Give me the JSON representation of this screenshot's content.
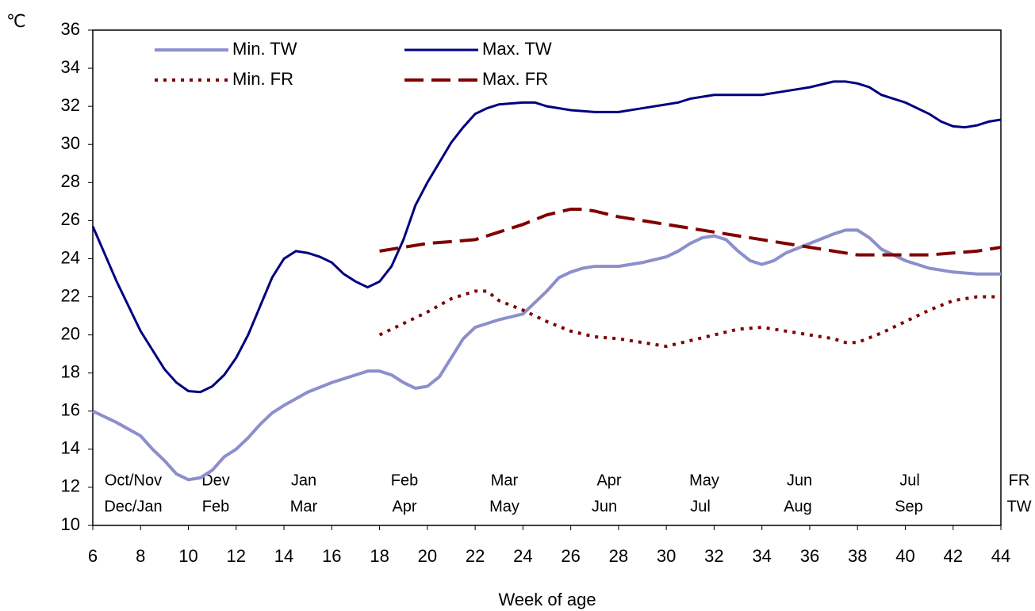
{
  "chart_data": {
    "type": "line",
    "y_label": "℃",
    "x_label": "Week of age",
    "xlim": [
      6,
      44
    ],
    "xticks": [
      6,
      8,
      10,
      12,
      14,
      16,
      18,
      20,
      22,
      24,
      26,
      28,
      30,
      32,
      34,
      36,
      38,
      40,
      42,
      44
    ],
    "ylim": [
      10,
      36
    ],
    "yticks": [
      10,
      12,
      14,
      16,
      18,
      20,
      22,
      24,
      26,
      28,
      30,
      32,
      34,
      36
    ],
    "annotations": [
      [
        "Oct/Nov",
        "Dev",
        "Jan",
        "Feb",
        "Mar",
        "Apr",
        "May",
        "Jun",
        "Jul",
        "FR"
      ],
      [
        "Dec/Jan",
        "Feb",
        "Mar",
        "Apr",
        "May",
        "Jun",
        "Jul",
        "Aug",
        "Sep",
        "TW"
      ]
    ],
    "series": [
      {
        "name": "Min. TW",
        "color": "#8c8fcc",
        "style": "solid",
        "x": [
          6,
          7,
          8,
          8.5,
          9,
          9.5,
          10,
          10.5,
          11,
          11.5,
          12,
          12.5,
          13,
          13.5,
          14,
          15,
          16,
          17,
          17.5,
          18,
          18.5,
          19,
          19.5,
          20,
          20.5,
          21,
          21.5,
          22,
          23,
          24,
          25,
          25.5,
          26,
          26.5,
          27,
          28,
          29,
          30,
          30.5,
          31,
          31.5,
          32,
          32.5,
          33,
          33.5,
          34,
          34.5,
          35,
          36,
          37,
          37.5,
          38,
          38.5,
          39,
          40,
          41,
          42,
          43,
          44
        ],
        "values": [
          16.0,
          15.4,
          14.7,
          14.0,
          13.4,
          12.7,
          12.4,
          12.5,
          12.9,
          13.6,
          14.0,
          14.6,
          15.3,
          15.9,
          16.3,
          17.0,
          17.5,
          17.9,
          18.1,
          18.1,
          17.9,
          17.5,
          17.2,
          17.3,
          17.8,
          18.8,
          19.8,
          20.4,
          20.8,
          21.1,
          22.3,
          23.0,
          23.3,
          23.5,
          23.6,
          23.6,
          23.8,
          24.1,
          24.4,
          24.8,
          25.1,
          25.2,
          25.0,
          24.4,
          23.9,
          23.7,
          23.9,
          24.3,
          24.8,
          25.3,
          25.5,
          25.5,
          25.1,
          24.5,
          23.9,
          23.5,
          23.3,
          23.2,
          23.2
        ]
      },
      {
        "name": "Max. TW",
        "color": "#000080",
        "style": "solid",
        "x": [
          6,
          7,
          8,
          9,
          9.5,
          10,
          10.5,
          11,
          11.5,
          12,
          12.5,
          13,
          13.5,
          14,
          14.5,
          15,
          15.5,
          16,
          16.5,
          17,
          17.5,
          18,
          18.5,
          19,
          19.5,
          20,
          21,
          21.5,
          22,
          22.5,
          23,
          24,
          24.5,
          25,
          26,
          27,
          28,
          29,
          30,
          30.5,
          31,
          32,
          33,
          34,
          34.5,
          35,
          36,
          37,
          37.5,
          38,
          38.5,
          39,
          40,
          41,
          41.5,
          42,
          42.5,
          43,
          43.5,
          44
        ],
        "values": [
          25.7,
          22.8,
          20.2,
          18.2,
          17.5,
          17.05,
          17.0,
          17.3,
          17.9,
          18.8,
          20.0,
          21.5,
          23.0,
          24.0,
          24.4,
          24.3,
          24.1,
          23.8,
          23.2,
          22.8,
          22.5,
          22.8,
          23.6,
          25.0,
          26.8,
          28.0,
          30.1,
          30.9,
          31.6,
          31.9,
          32.1,
          32.2,
          32.2,
          32.0,
          31.8,
          31.7,
          31.7,
          31.9,
          32.1,
          32.2,
          32.4,
          32.6,
          32.6,
          32.6,
          32.7,
          32.8,
          33.0,
          33.3,
          33.3,
          33.2,
          33.0,
          32.6,
          32.2,
          31.6,
          31.2,
          30.95,
          30.9,
          31.0,
          31.2,
          31.3
        ]
      },
      {
        "name": "Min. FR",
        "color": "#800000",
        "style": "dotted",
        "x": [
          18,
          19,
          20,
          21,
          22,
          22.5,
          23,
          24,
          25,
          26,
          27,
          28,
          29,
          30,
          31,
          32,
          33,
          34,
          35,
          36,
          37,
          37.5,
          38,
          39,
          40,
          41,
          42,
          43,
          44
        ],
        "values": [
          20.0,
          20.6,
          21.2,
          21.9,
          22.3,
          22.3,
          21.8,
          21.3,
          20.7,
          20.2,
          19.9,
          19.8,
          19.6,
          19.4,
          19.7,
          20.0,
          20.3,
          20.4,
          20.2,
          20.0,
          19.8,
          19.6,
          19.6,
          20.1,
          20.7,
          21.3,
          21.8,
          22.0,
          22.0
        ]
      },
      {
        "name": "Max. FR",
        "color": "#800000",
        "style": "dashed",
        "x": [
          18,
          19,
          20,
          21,
          22,
          23,
          24,
          25,
          26,
          26.5,
          27,
          28,
          29,
          30,
          31,
          32,
          33,
          34,
          35,
          36,
          37,
          38,
          39,
          40,
          41,
          42,
          43,
          44
        ],
        "values": [
          24.4,
          24.6,
          24.8,
          24.9,
          25.0,
          25.4,
          25.8,
          26.3,
          26.6,
          26.6,
          26.5,
          26.2,
          26.0,
          25.8,
          25.6,
          25.4,
          25.2,
          25.0,
          24.8,
          24.6,
          24.4,
          24.2,
          24.2,
          24.2,
          24.2,
          24.3,
          24.4,
          24.6
        ]
      }
    ]
  }
}
